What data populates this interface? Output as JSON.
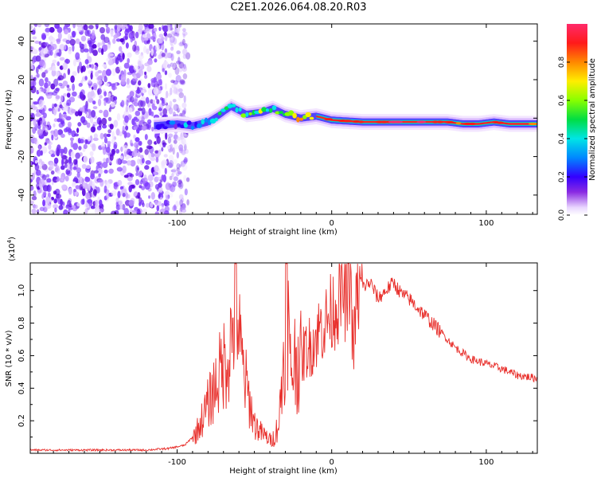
{
  "title": "C2E1.2026.064.08.20.R03",
  "colors": {
    "signal": "#e8302c",
    "frame": "#000000",
    "background": "#ffffff"
  },
  "chart_data": [
    {
      "type": "heatmap",
      "title": "C2E1.2026.064.08.20.R03",
      "xlabel": "Height of straight line (km)",
      "ylabel": "Frequency (Hz)",
      "xlim": [
        -195,
        133
      ],
      "ylim": [
        -50,
        49
      ],
      "xticks": [
        -100,
        0,
        100
      ],
      "xtick_labels": [
        "-100",
        "0",
        "100"
      ],
      "yticks": [
        -40,
        -20,
        0,
        20,
        40
      ],
      "ytick_labels": [
        "-40",
        "-20",
        "0",
        "20",
        "40"
      ],
      "colorbar": {
        "label": "Normalized spectral amplitude",
        "range": [
          0,
          1
        ],
        "ticks": [
          0.0,
          0.2,
          0.4,
          0.6,
          0.8
        ],
        "tick_labels": [
          "0.0",
          "0.2",
          "0.4",
          "0.6",
          "0.8"
        ]
      },
      "noise_region_km": [
        -195,
        -95
      ],
      "ridge": {
        "x": [
          -115,
          -100,
          -90,
          -80,
          -72,
          -65,
          -55,
          -45,
          -38,
          -30,
          -20,
          -10,
          0,
          20,
          40,
          60,
          75,
          85,
          95,
          105,
          115,
          133
        ],
        "freq": [
          -4,
          -3,
          -4,
          -2,
          2,
          6,
          2,
          3,
          5,
          2,
          0,
          1,
          -1,
          -2,
          -2,
          -2,
          -2,
          -3,
          -3,
          -2,
          -3,
          -3
        ],
        "amplitude": [
          0.25,
          0.3,
          0.35,
          0.45,
          0.5,
          0.5,
          0.55,
          0.6,
          0.55,
          0.65,
          0.75,
          0.8,
          0.85,
          0.9,
          0.92,
          0.92,
          0.85,
          0.8,
          0.95,
          0.9,
          0.8,
          0.75
        ]
      }
    },
    {
      "type": "line",
      "xlabel": "Height of straight line (km)",
      "ylabel": "SNR (10 * v/v)",
      "y_multiplier": "(x10^4)",
      "y_multiplier_base": "(x10",
      "y_multiplier_exp": "4",
      "y_multiplier_close": ")",
      "xlim": [
        -195,
        133
      ],
      "ylim": [
        0,
        1.17
      ],
      "xticks": [
        -100,
        0,
        100
      ],
      "xtick_labels": [
        "-100",
        "0",
        "100"
      ],
      "yticks": [
        0.2,
        0.4,
        0.6,
        0.8,
        1.0
      ],
      "ytick_labels": [
        "0.2",
        "0.4",
        "0.6",
        "0.8",
        "1.0"
      ],
      "series": [
        {
          "name": "SNR",
          "color": "#e8302c",
          "x": [
            -195,
            -160,
            -120,
            -105,
            -95,
            -88,
            -82,
            -78,
            -74,
            -70,
            -67,
            -64,
            -62,
            -60,
            -58,
            -55,
            -50,
            -45,
            -42,
            -40,
            -37,
            -34,
            -31,
            -29,
            -27,
            -25,
            -22,
            -20,
            -18,
            -15,
            -12,
            -10,
            -7,
            -4,
            -1,
            2,
            5,
            8,
            10,
            12,
            14,
            16,
            20,
            25,
            30,
            35,
            40,
            45,
            50,
            55,
            60,
            70,
            80,
            90,
            100,
            110,
            120,
            133
          ],
          "y": [
            0.02,
            0.02,
            0.02,
            0.03,
            0.05,
            0.12,
            0.25,
            0.35,
            0.45,
            0.55,
            0.6,
            0.75,
            1.15,
            0.7,
            0.55,
            0.4,
            0.18,
            0.12,
            0.1,
            0.08,
            0.1,
            0.2,
            0.6,
            1.14,
            0.5,
            0.55,
            0.6,
            0.55,
            0.62,
            0.65,
            0.68,
            0.72,
            0.78,
            0.8,
            0.85,
            0.9,
            0.95,
            1.0,
            0.9,
            1.15,
            0.6,
            0.95,
            1.02,
            1.05,
            0.95,
            1.0,
            1.05,
            0.98,
            0.95,
            0.9,
            0.85,
            0.75,
            0.65,
            0.58,
            0.55,
            0.52,
            0.48,
            0.46
          ]
        }
      ]
    }
  ]
}
